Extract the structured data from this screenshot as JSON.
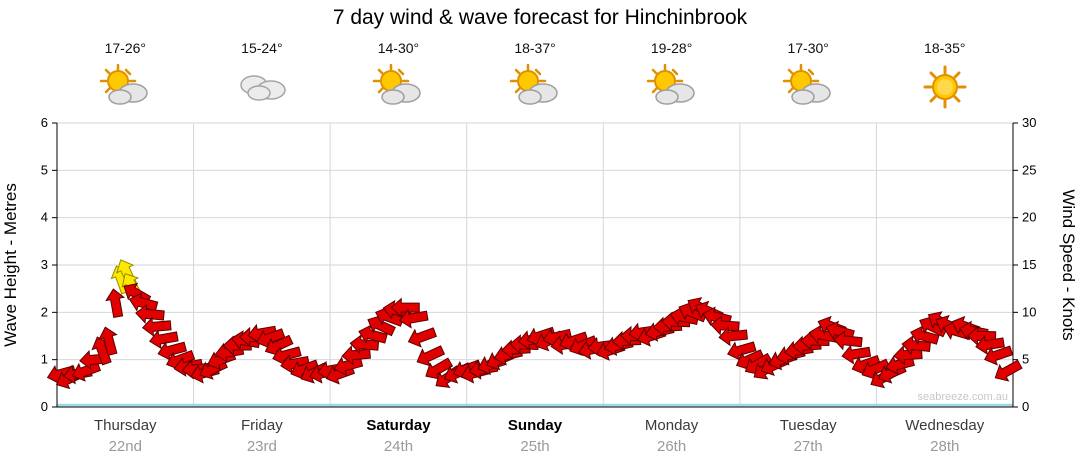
{
  "title": "7 day wind & wave forecast for Hinchinbrook",
  "watermark": "seabreeze.com.au",
  "colors": {
    "arrow_red": "#e10000",
    "arrow_red_stroke": "#5a0000",
    "arrow_yellow": "#ffe800",
    "arrow_yellow_stroke": "#8f8f00",
    "grid": "#d6d6de",
    "axis": "#000000",
    "zero_line": "#9fd8e8",
    "watermark": "#c8c8c8"
  },
  "days": [
    {
      "name": "Thursday",
      "date": "22nd",
      "temp": "17-26°",
      "icon": "partly-cloudy",
      "bold": false
    },
    {
      "name": "Friday",
      "date": "23rd",
      "temp": "15-24°",
      "icon": "cloudy",
      "bold": false
    },
    {
      "name": "Saturday",
      "date": "24th",
      "temp": "14-30°",
      "icon": "partly-cloudy",
      "bold": true
    },
    {
      "name": "Sunday",
      "date": "25th",
      "temp": "18-37°",
      "icon": "partly-cloudy",
      "bold": true
    },
    {
      "name": "Monday",
      "date": "26th",
      "temp": "19-28°",
      "icon": "partly-cloudy",
      "bold": false
    },
    {
      "name": "Tuesday",
      "date": "27th",
      "temp": "17-30°",
      "icon": "partly-cloudy",
      "bold": false
    },
    {
      "name": "Wednesday",
      "date": "28th",
      "temp": "18-35°",
      "icon": "sunny",
      "bold": false
    }
  ],
  "chart_data": {
    "type": "scatter",
    "title": "7 day wind & wave forecast for Hinchinbrook",
    "ylabel_left": "Wave Height - Metres",
    "ylabel_right": "Wind Speed - Knots",
    "ylim_metres": [
      0,
      6
    ],
    "ylim_knots": [
      0,
      30
    ],
    "yticks_metres": [
      0,
      1,
      2,
      3,
      4,
      5,
      6
    ],
    "yticks_knots": [
      0,
      5,
      10,
      15,
      20,
      25,
      30
    ],
    "x_categories": [
      "Thursday 22nd",
      "Friday 23rd",
      "Saturday 24th",
      "Sunday 25th",
      "Monday 26th",
      "Tuesday 27th",
      "Wednesday 28th"
    ],
    "point_format": [
      "x_day_fraction_0_to_7",
      "wind_knots",
      "arrow_direction_deg",
      "is_yellow_strong_wind"
    ],
    "points": [
      [
        0.03,
        3.5,
        255,
        0
      ],
      [
        0.09,
        3.0,
        245,
        0
      ],
      [
        0.15,
        3.5,
        260,
        0
      ],
      [
        0.21,
        3.8,
        250,
        0
      ],
      [
        0.27,
        5.0,
        265,
        0
      ],
      [
        0.33,
        6.0,
        340,
        0
      ],
      [
        0.38,
        7.0,
        345,
        0
      ],
      [
        0.43,
        11.0,
        350,
        0
      ],
      [
        0.47,
        13.5,
        340,
        1
      ],
      [
        0.51,
        14.2,
        335,
        1
      ],
      [
        0.55,
        12.8,
        330,
        1
      ],
      [
        0.58,
        12.0,
        300,
        0
      ],
      [
        0.63,
        11.0,
        285,
        0
      ],
      [
        0.68,
        9.8,
        275,
        0
      ],
      [
        0.73,
        8.5,
        265,
        0
      ],
      [
        0.78,
        7.2,
        260,
        0
      ],
      [
        0.84,
        6.0,
        255,
        0
      ],
      [
        0.9,
        5.0,
        250,
        0
      ],
      [
        0.96,
        4.3,
        260,
        0
      ],
      [
        1.02,
        4.0,
        265,
        0
      ],
      [
        1.08,
        3.6,
        255,
        0
      ],
      [
        1.14,
        4.0,
        245,
        0
      ],
      [
        1.2,
        5.0,
        250,
        0
      ],
      [
        1.26,
        5.8,
        260,
        0
      ],
      [
        1.32,
        6.5,
        270,
        0
      ],
      [
        1.38,
        7.0,
        280,
        0
      ],
      [
        1.44,
        7.4,
        270,
        0
      ],
      [
        1.5,
        7.8,
        260,
        0
      ],
      [
        1.56,
        7.3,
        250,
        0
      ],
      [
        1.62,
        6.5,
        245,
        0
      ],
      [
        1.68,
        5.5,
        255,
        0
      ],
      [
        1.74,
        4.6,
        260,
        0
      ],
      [
        1.81,
        4.0,
        250,
        0
      ],
      [
        1.88,
        3.6,
        245,
        0
      ],
      [
        1.95,
        3.6,
        255,
        0
      ],
      [
        2.01,
        3.9,
        260,
        0
      ],
      [
        2.07,
        3.5,
        250,
        0
      ],
      [
        2.13,
        4.4,
        255,
        0
      ],
      [
        2.19,
        5.5,
        265,
        0
      ],
      [
        2.25,
        6.6,
        275,
        0
      ],
      [
        2.31,
        7.6,
        285,
        0
      ],
      [
        2.37,
        8.6,
        295,
        0
      ],
      [
        2.43,
        9.5,
        290,
        0
      ],
      [
        2.49,
        10.2,
        280,
        0
      ],
      [
        2.55,
        10.5,
        270,
        0
      ],
      [
        2.61,
        9.4,
        260,
        0
      ],
      [
        2.67,
        7.4,
        250,
        0
      ],
      [
        2.73,
        5.4,
        245,
        0
      ],
      [
        2.79,
        4.0,
        240,
        0
      ],
      [
        2.86,
        3.1,
        235,
        0
      ],
      [
        2.93,
        3.6,
        245,
        0
      ],
      [
        3.0,
        4.0,
        250,
        0
      ],
      [
        3.06,
        3.6,
        255,
        0
      ],
      [
        3.12,
        4.0,
        260,
        0
      ],
      [
        3.18,
        4.5,
        252,
        0
      ],
      [
        3.24,
        5.0,
        246,
        0
      ],
      [
        3.3,
        5.5,
        256,
        0
      ],
      [
        3.36,
        6.1,
        266,
        0
      ],
      [
        3.42,
        6.6,
        272,
        0
      ],
      [
        3.48,
        7.1,
        262,
        0
      ],
      [
        3.54,
        7.5,
        252,
        0
      ],
      [
        3.6,
        7.0,
        247,
        0
      ],
      [
        3.66,
        7.4,
        257,
        0
      ],
      [
        3.72,
        6.6,
        262,
        0
      ],
      [
        3.78,
        7.0,
        252,
        0
      ],
      [
        3.85,
        6.5,
        247,
        0
      ],
      [
        3.92,
        6.1,
        257,
        0
      ],
      [
        3.99,
        6.4,
        262,
        0
      ],
      [
        4.05,
        6.0,
        252,
        0
      ],
      [
        4.11,
        6.5,
        257,
        0
      ],
      [
        4.17,
        7.0,
        267,
        0
      ],
      [
        4.23,
        7.5,
        272,
        0
      ],
      [
        4.29,
        7.9,
        262,
        0
      ],
      [
        4.35,
        7.5,
        252,
        0
      ],
      [
        4.41,
        8.0,
        257,
        0
      ],
      [
        4.47,
        8.5,
        267,
        0
      ],
      [
        4.53,
        9.0,
        272,
        0
      ],
      [
        4.59,
        9.5,
        282,
        0
      ],
      [
        4.65,
        10.0,
        292,
        0
      ],
      [
        4.71,
        10.5,
        300,
        0
      ],
      [
        4.77,
        10.1,
        294,
        0
      ],
      [
        4.83,
        9.5,
        284,
        0
      ],
      [
        4.89,
        8.6,
        274,
        0
      ],
      [
        4.95,
        7.5,
        264,
        0
      ],
      [
        5.01,
        6.0,
        254,
        0
      ],
      [
        5.07,
        5.0,
        246,
        0
      ],
      [
        5.13,
        4.5,
        240,
        0
      ],
      [
        5.19,
        4.0,
        236,
        0
      ],
      [
        5.25,
        4.4,
        246,
        0
      ],
      [
        5.31,
        5.0,
        251,
        0
      ],
      [
        5.37,
        5.5,
        256,
        0
      ],
      [
        5.43,
        6.0,
        261,
        0
      ],
      [
        5.49,
        6.5,
        266,
        0
      ],
      [
        5.55,
        7.0,
        271,
        0
      ],
      [
        5.61,
        7.6,
        281,
        0
      ],
      [
        5.67,
        8.5,
        291,
        0
      ],
      [
        5.73,
        8.0,
        286,
        0
      ],
      [
        5.79,
        7.0,
        276,
        0
      ],
      [
        5.85,
        5.6,
        261,
        0
      ],
      [
        5.92,
        4.5,
        251,
        0
      ],
      [
        5.99,
        4.0,
        246,
        0
      ],
      [
        6.05,
        3.1,
        241,
        0
      ],
      [
        6.11,
        3.6,
        246,
        0
      ],
      [
        6.17,
        4.5,
        256,
        0
      ],
      [
        6.23,
        5.5,
        266,
        0
      ],
      [
        6.29,
        6.5,
        276,
        0
      ],
      [
        6.35,
        7.5,
        286,
        0
      ],
      [
        6.41,
        8.5,
        296,
        0
      ],
      [
        6.47,
        9.0,
        300,
        0
      ],
      [
        6.53,
        8.6,
        294,
        0
      ],
      [
        6.59,
        8.0,
        286,
        0
      ],
      [
        6.65,
        8.5,
        290,
        0
      ],
      [
        6.71,
        8.0,
        281,
        0
      ],
      [
        6.77,
        7.5,
        271,
        0
      ],
      [
        6.83,
        6.6,
        261,
        0
      ],
      [
        6.89,
        5.5,
        251,
        0
      ],
      [
        6.96,
        3.8,
        241,
        0
      ]
    ]
  }
}
